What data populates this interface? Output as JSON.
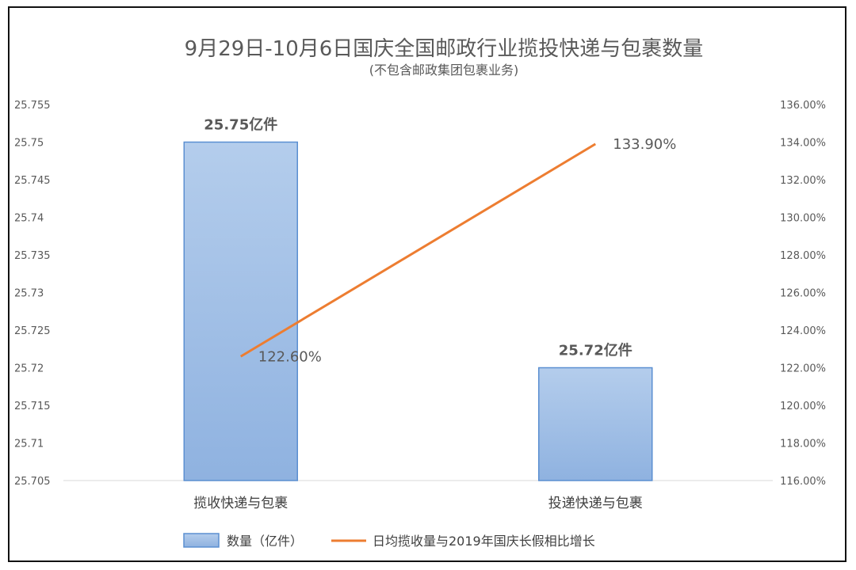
{
  "chart_data": {
    "type": "bar+line",
    "title": "9月29日-10月6日国庆全国邮政行业揽投快递与包裹数量",
    "subtitle": "(不包含邮政集团包裹业务)",
    "categories": [
      "揽收快递与包裹",
      "投递快递与包裹"
    ],
    "series": [
      {
        "name": "数量（亿件）",
        "type": "bar",
        "axis": "left",
        "values": [
          25.75,
          25.72
        ],
        "labels": [
          "25.75亿件",
          "25.72亿件"
        ],
        "color": "#9dbde6"
      },
      {
        "name": "日均揽收量与2019年国庆长假相比增长",
        "type": "line",
        "axis": "right",
        "values": [
          122.6,
          133.9
        ],
        "labels": [
          "122.60%",
          "133.90%"
        ],
        "color": "#ed7d31"
      }
    ],
    "y_left": {
      "range": [
        25.705,
        25.755
      ],
      "ticks": [
        "25.705",
        "25.71",
        "25.715",
        "25.72",
        "25.725",
        "25.73",
        "25.735",
        "25.74",
        "25.745",
        "25.75",
        "25.755"
      ]
    },
    "y_right": {
      "range": [
        116,
        136
      ],
      "ticks": [
        "116.00%",
        "118.00%",
        "120.00%",
        "122.00%",
        "124.00%",
        "126.00%",
        "128.00%",
        "130.00%",
        "132.00%",
        "134.00%",
        "136.00%"
      ]
    },
    "grid": false,
    "legend_position": "bottom"
  }
}
